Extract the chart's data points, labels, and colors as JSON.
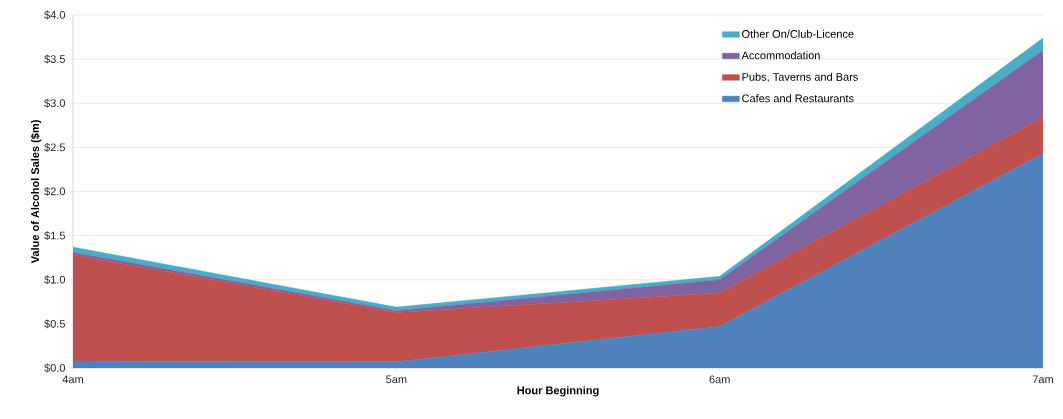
{
  "chart_data": {
    "type": "area",
    "stacked": true,
    "xlabel": "Hour Beginning",
    "ylabel": "Value of Alcohol Sales ($m)",
    "categories": [
      "4am",
      "5am",
      "6am",
      "7am"
    ],
    "series": [
      {
        "name": "Cafes and Restaurants",
        "color": "#4f81bd",
        "values": [
          0.08,
          0.07,
          0.47,
          2.43
        ]
      },
      {
        "name": "Pubs, Taverns and Bars",
        "color": "#c0504d",
        "values": [
          1.2,
          0.56,
          0.38,
          0.41
        ]
      },
      {
        "name": "Accommodation",
        "color": "#8064a2",
        "values": [
          0.03,
          0.02,
          0.15,
          0.76
        ]
      },
      {
        "name": "Other On/Club-Licence",
        "color": "#4bacc6",
        "values": [
          0.06,
          0.04,
          0.04,
          0.14
        ]
      }
    ],
    "ylim": [
      0,
      4
    ],
    "yticks": [
      {
        "value": 0,
        "label": "$0.0"
      },
      {
        "value": 0.5,
        "label": "$0.5"
      },
      {
        "value": 1,
        "label": "$1.0"
      },
      {
        "value": 1.5,
        "label": "$1.5"
      },
      {
        "value": 2,
        "label": "$2.0"
      },
      {
        "value": 2.5,
        "label": "$2.5"
      },
      {
        "value": 3,
        "label": "$3.0"
      },
      {
        "value": 3.5,
        "label": "$3.5"
      },
      {
        "value": 4,
        "label": "$4.0"
      }
    ],
    "grid": "y",
    "legend": "top right"
  }
}
